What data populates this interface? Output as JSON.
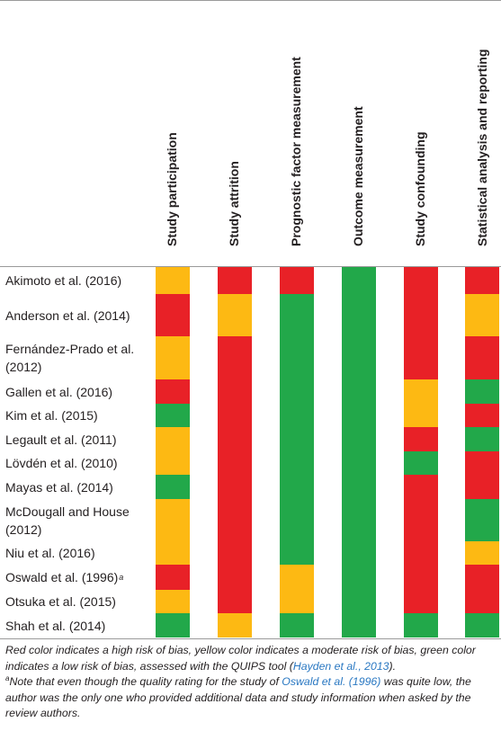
{
  "columns": [
    "Study participation",
    "Study attrition",
    "Prognostic factor measurement",
    "Outcome measurement",
    "Study confounding",
    "Statistical analysis and reporting"
  ],
  "colors": {
    "high": "#e82127",
    "moderate": "#fdb913",
    "low": "#22a84a"
  },
  "studies": [
    {
      "name": "Akimoto et al. (2016)",
      "sup": "",
      "ratings": [
        "moderate",
        "high",
        "high",
        "low",
        "high",
        "high"
      ]
    },
    {
      "name": "Anderson et al. (2014)",
      "sup": "",
      "ratings": [
        "high",
        "moderate",
        "low",
        "low",
        "high",
        "moderate"
      ]
    },
    {
      "name": "Fernández-Prado et al. (2012)",
      "sup": "",
      "ratings": [
        "moderate",
        "high",
        "low",
        "low",
        "high",
        "high"
      ]
    },
    {
      "name": "Gallen et al. (2016)",
      "sup": "",
      "ratings": [
        "high",
        "high",
        "low",
        "low",
        "moderate",
        "low"
      ]
    },
    {
      "name": "Kim et al. (2015)",
      "sup": "",
      "ratings": [
        "low",
        "high",
        "low",
        "low",
        "moderate",
        "high"
      ]
    },
    {
      "name": "Legault et al. (2011)",
      "sup": "",
      "ratings": [
        "moderate",
        "high",
        "low",
        "low",
        "high",
        "low"
      ]
    },
    {
      "name": "Lövdén et al. (2010)",
      "sup": "",
      "ratings": [
        "moderate",
        "high",
        "low",
        "low",
        "low",
        "high"
      ]
    },
    {
      "name": "Mayas et al. (2014)",
      "sup": "",
      "ratings": [
        "low",
        "high",
        "low",
        "low",
        "high",
        "high"
      ]
    },
    {
      "name": "McDougall and House (2012)",
      "sup": "",
      "ratings": [
        "moderate",
        "high",
        "low",
        "low",
        "high",
        "low"
      ]
    },
    {
      "name": "Niu et al. (2016)",
      "sup": "",
      "ratings": [
        "moderate",
        "high",
        "low",
        "low",
        "high",
        "moderate"
      ]
    },
    {
      "name": "Oswald et al. (1996)",
      "sup": "a",
      "ratings": [
        "high",
        "high",
        "moderate",
        "low",
        "high",
        "high"
      ]
    },
    {
      "name": "Otsuka et al. (2015)",
      "sup": "",
      "ratings": [
        "moderate",
        "high",
        "moderate",
        "low",
        "high",
        "high"
      ]
    },
    {
      "name": "Shah et al. (2014)",
      "sup": "",
      "ratings": [
        "low",
        "moderate",
        "low",
        "low",
        "low",
        "low"
      ]
    }
  ],
  "caption": {
    "line1_text": "Red color indicates a high risk of bias, yellow color indicates a moderate risk of bias, green color indicates a low risk of bias, assessed with the QUIPS tool (",
    "line1_cite": "Hayden et al., 2013",
    "line1_end": ").",
    "note_mark": "a",
    "note_text1": "Note that even though the quality rating for the study of ",
    "note_cite": "Oswald et al. (1996)",
    "note_text2": " was quite low, the author was the only one who provided additional data and study information when asked by the review authors."
  }
}
